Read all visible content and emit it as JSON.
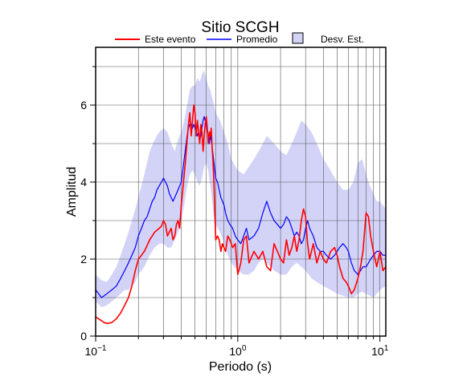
{
  "chart_data": {
    "type": "line",
    "title": "Sitio SCGH",
    "xlabel": "Periodo (s)",
    "ylabel": "Amplitud",
    "xscale": "log",
    "xlim": [
      0.1,
      11
    ],
    "ylim": [
      0,
      7.5
    ],
    "xticks": [
      {
        "base": "10",
        "exp": "−1"
      },
      {
        "base": "10",
        "exp": "0"
      },
      {
        "base": "10",
        "exp": "1"
      }
    ],
    "yticks": [
      "0",
      "2",
      "4",
      "6"
    ],
    "grid": true,
    "legend_position": "top",
    "legend": {
      "event": "Este evento",
      "mean": "Promedio",
      "band": "Desv. Est."
    },
    "colors": {
      "event": "#ff0000",
      "mean": "#0000ff",
      "band": "#d3d3f8"
    },
    "series": [
      {
        "name": "Este evento",
        "x": [
          0.1,
          0.105,
          0.11,
          0.115,
          0.12,
          0.13,
          0.14,
          0.15,
          0.16,
          0.17,
          0.18,
          0.19,
          0.2,
          0.21,
          0.22,
          0.23,
          0.24,
          0.25,
          0.26,
          0.27,
          0.28,
          0.29,
          0.3,
          0.31,
          0.32,
          0.33,
          0.34,
          0.35,
          0.36,
          0.37,
          0.38,
          0.39,
          0.4,
          0.41,
          0.42,
          0.43,
          0.44,
          0.45,
          0.46,
          0.47,
          0.48,
          0.49,
          0.5,
          0.51,
          0.52,
          0.53,
          0.54,
          0.55,
          0.56,
          0.57,
          0.58,
          0.59,
          0.6,
          0.61,
          0.62,
          0.63,
          0.64,
          0.65,
          0.66,
          0.67,
          0.68,
          0.69,
          0.7,
          0.72,
          0.74,
          0.76,
          0.78,
          0.8,
          0.82,
          0.85,
          0.88,
          0.92,
          0.96,
          1.0,
          1.05,
          1.1,
          1.15,
          1.2,
          1.3,
          1.4,
          1.5,
          1.6,
          1.7,
          1.8,
          1.9,
          2.0,
          2.1,
          2.2,
          2.3,
          2.4,
          2.5,
          2.6,
          2.7,
          2.8,
          2.9,
          3.0,
          3.1,
          3.2,
          3.4,
          3.6,
          3.8,
          4.0,
          4.2,
          4.5,
          4.8,
          5.0,
          5.2,
          5.5,
          5.8,
          6.0,
          6.3,
          6.6,
          7.0,
          7.3,
          7.6,
          8.0,
          8.3,
          8.6,
          9.0,
          9.5,
          10.0,
          10.5,
          11.0
        ],
        "y": [
          0.5,
          0.45,
          0.4,
          0.35,
          0.33,
          0.35,
          0.45,
          0.6,
          0.8,
          1.0,
          1.3,
          1.7,
          2.0,
          2.1,
          2.2,
          2.35,
          2.5,
          2.6,
          2.7,
          2.75,
          2.8,
          2.85,
          3.0,
          2.9,
          2.6,
          2.7,
          2.8,
          2.5,
          2.6,
          2.9,
          3.0,
          2.8,
          3.4,
          3.8,
          4.2,
          4.6,
          5.1,
          5.5,
          5.8,
          5.2,
          5.6,
          6.0,
          5.8,
          5.2,
          5.6,
          5.3,
          5.0,
          5.5,
          5.3,
          4.8,
          5.2,
          5.5,
          5.7,
          5.4,
          5.0,
          5.3,
          5.2,
          5.4,
          4.9,
          4.5,
          4.0,
          3.2,
          2.5,
          2.6,
          2.5,
          2.2,
          2.4,
          2.3,
          2.2,
          2.6,
          2.5,
          2.3,
          2.4,
          1.6,
          1.9,
          2.5,
          2.6,
          1.9,
          2.2,
          2.0,
          2.2,
          1.8,
          1.7,
          2.4,
          2.2,
          2.0,
          1.9,
          2.5,
          2.1,
          2.3,
          2.6,
          2.2,
          2.5,
          3.0,
          3.3,
          3.1,
          2.4,
          2.0,
          2.4,
          1.9,
          2.2,
          2.0,
          1.9,
          2.2,
          2.3,
          2.1,
          1.8,
          1.5,
          1.4,
          1.3,
          1.1,
          1.2,
          1.5,
          1.8,
          2.2,
          3.2,
          3.1,
          2.6,
          2.2,
          1.8,
          2.2,
          1.7,
          1.8
        ]
      },
      {
        "name": "Promedio",
        "x": [
          0.1,
          0.105,
          0.11,
          0.115,
          0.12,
          0.13,
          0.14,
          0.15,
          0.16,
          0.17,
          0.18,
          0.19,
          0.2,
          0.21,
          0.22,
          0.23,
          0.24,
          0.25,
          0.26,
          0.27,
          0.28,
          0.29,
          0.3,
          0.31,
          0.32,
          0.33,
          0.34,
          0.35,
          0.36,
          0.37,
          0.38,
          0.39,
          0.4,
          0.41,
          0.42,
          0.43,
          0.44,
          0.45,
          0.46,
          0.47,
          0.48,
          0.49,
          0.5,
          0.51,
          0.52,
          0.53,
          0.54,
          0.55,
          0.56,
          0.57,
          0.58,
          0.59,
          0.6,
          0.61,
          0.62,
          0.63,
          0.64,
          0.65,
          0.66,
          0.67,
          0.68,
          0.69,
          0.7,
          0.72,
          0.74,
          0.76,
          0.78,
          0.8,
          0.82,
          0.85,
          0.88,
          0.92,
          0.96,
          1.0,
          1.05,
          1.1,
          1.15,
          1.2,
          1.3,
          1.4,
          1.5,
          1.6,
          1.7,
          1.8,
          1.9,
          2.0,
          2.1,
          2.2,
          2.3,
          2.4,
          2.5,
          2.6,
          2.7,
          2.8,
          2.9,
          3.0,
          3.1,
          3.2,
          3.4,
          3.6,
          3.8,
          4.0,
          4.2,
          4.5,
          4.8,
          5.0,
          5.2,
          5.5,
          5.8,
          6.0,
          6.3,
          6.6,
          7.0,
          7.3,
          7.6,
          8.0,
          8.3,
          8.6,
          9.0,
          9.5,
          10.0,
          10.5,
          11.0
        ],
        "y": [
          1.2,
          1.1,
          1.0,
          1.05,
          1.1,
          1.2,
          1.3,
          1.5,
          1.7,
          1.9,
          2.1,
          2.3,
          2.6,
          2.8,
          3.0,
          3.1,
          3.3,
          3.5,
          3.6,
          3.8,
          3.9,
          4.0,
          4.1,
          4.0,
          3.9,
          3.7,
          3.6,
          3.5,
          3.6,
          3.7,
          3.8,
          3.9,
          4.0,
          4.3,
          4.6,
          4.9,
          5.2,
          5.4,
          5.5,
          5.5,
          5.4,
          5.5,
          5.4,
          5.3,
          5.2,
          5.3,
          5.1,
          5.2,
          5.4,
          5.6,
          5.7,
          5.6,
          5.5,
          5.3,
          5.2,
          5.0,
          5.2,
          5.1,
          4.9,
          4.7,
          4.5,
          4.3,
          4.1,
          4.0,
          3.8,
          3.6,
          3.5,
          3.4,
          3.2,
          3.0,
          2.9,
          2.8,
          2.6,
          2.5,
          2.4,
          2.6,
          2.8,
          2.5,
          2.6,
          2.8,
          3.2,
          3.5,
          3.2,
          3.0,
          2.9,
          2.8,
          2.9,
          3.1,
          3.0,
          2.8,
          2.6,
          2.7,
          2.6,
          2.4,
          2.5,
          2.8,
          3.0,
          2.8,
          2.6,
          2.3,
          2.2,
          2.2,
          2.1,
          2.0,
          2.1,
          2.2,
          2.3,
          2.4,
          2.3,
          2.2,
          1.9,
          1.7,
          1.6,
          1.7,
          1.8,
          1.8,
          1.9,
          2.0,
          2.1,
          2.2,
          2.2,
          2.1,
          2.1
        ]
      }
    ],
    "band": {
      "name": "Desv. Est.",
      "x": [
        0.1,
        0.11,
        0.12,
        0.13,
        0.14,
        0.15,
        0.16,
        0.17,
        0.18,
        0.19,
        0.2,
        0.22,
        0.24,
        0.26,
        0.28,
        0.3,
        0.32,
        0.34,
        0.36,
        0.38,
        0.4,
        0.42,
        0.44,
        0.46,
        0.48,
        0.5,
        0.52,
        0.54,
        0.56,
        0.58,
        0.6,
        0.62,
        0.64,
        0.66,
        0.68,
        0.7,
        0.75,
        0.8,
        0.85,
        0.9,
        1.0,
        1.1,
        1.2,
        1.3,
        1.4,
        1.5,
        1.6,
        1.7,
        1.8,
        2.0,
        2.2,
        2.4,
        2.6,
        2.8,
        3.0,
        3.3,
        3.6,
        4.0,
        4.5,
        5.0,
        5.5,
        6.0,
        6.5,
        7.0,
        7.5,
        8.0,
        8.5,
        9.0,
        9.5,
        10.0,
        10.5,
        11.0
      ],
      "lower": [
        0.9,
        0.75,
        0.8,
        0.9,
        1.0,
        1.1,
        1.2,
        1.2,
        1.3,
        1.4,
        1.6,
        1.8,
        2.1,
        2.3,
        2.4,
        2.4,
        2.3,
        2.3,
        2.5,
        2.7,
        3.0,
        3.4,
        3.9,
        4.2,
        4.3,
        4.2,
        4.0,
        3.9,
        4.1,
        4.4,
        4.5,
        4.3,
        3.9,
        3.5,
        3.1,
        2.9,
        2.7,
        2.4,
        2.1,
        1.9,
        1.7,
        1.6,
        1.6,
        1.7,
        1.9,
        2.0,
        1.9,
        1.8,
        1.7,
        1.6,
        1.6,
        1.8,
        1.9,
        1.8,
        1.7,
        1.5,
        1.4,
        1.3,
        1.2,
        1.1,
        1.05,
        1.0,
        1.0,
        1.1,
        1.15,
        1.1,
        1.05,
        1.0,
        1.1,
        1.2,
        1.25,
        1.3
      ],
      "upper": [
        1.6,
        1.45,
        1.4,
        1.6,
        1.8,
        2.1,
        2.4,
        2.7,
        3.0,
        3.3,
        3.6,
        4.2,
        4.8,
        5.1,
        5.3,
        5.4,
        5.3,
        5.0,
        4.8,
        5.1,
        5.3,
        5.6,
        6.0,
        6.4,
        6.5,
        6.5,
        6.7,
        6.6,
        6.8,
        6.9,
        6.7,
        6.5,
        6.4,
        6.2,
        6.0,
        5.8,
        5.6,
        5.3,
        5.0,
        4.6,
        4.3,
        4.2,
        4.4,
        4.6,
        4.8,
        5.0,
        5.2,
        5.1,
        5.0,
        4.8,
        4.7,
        5.0,
        5.3,
        5.6,
        5.5,
        5.3,
        5.0,
        4.6,
        4.3,
        4.0,
        3.8,
        3.8,
        4.0,
        4.5,
        4.6,
        4.2,
        3.9,
        3.7,
        3.5,
        3.5,
        3.4,
        3.3
      ]
    }
  }
}
